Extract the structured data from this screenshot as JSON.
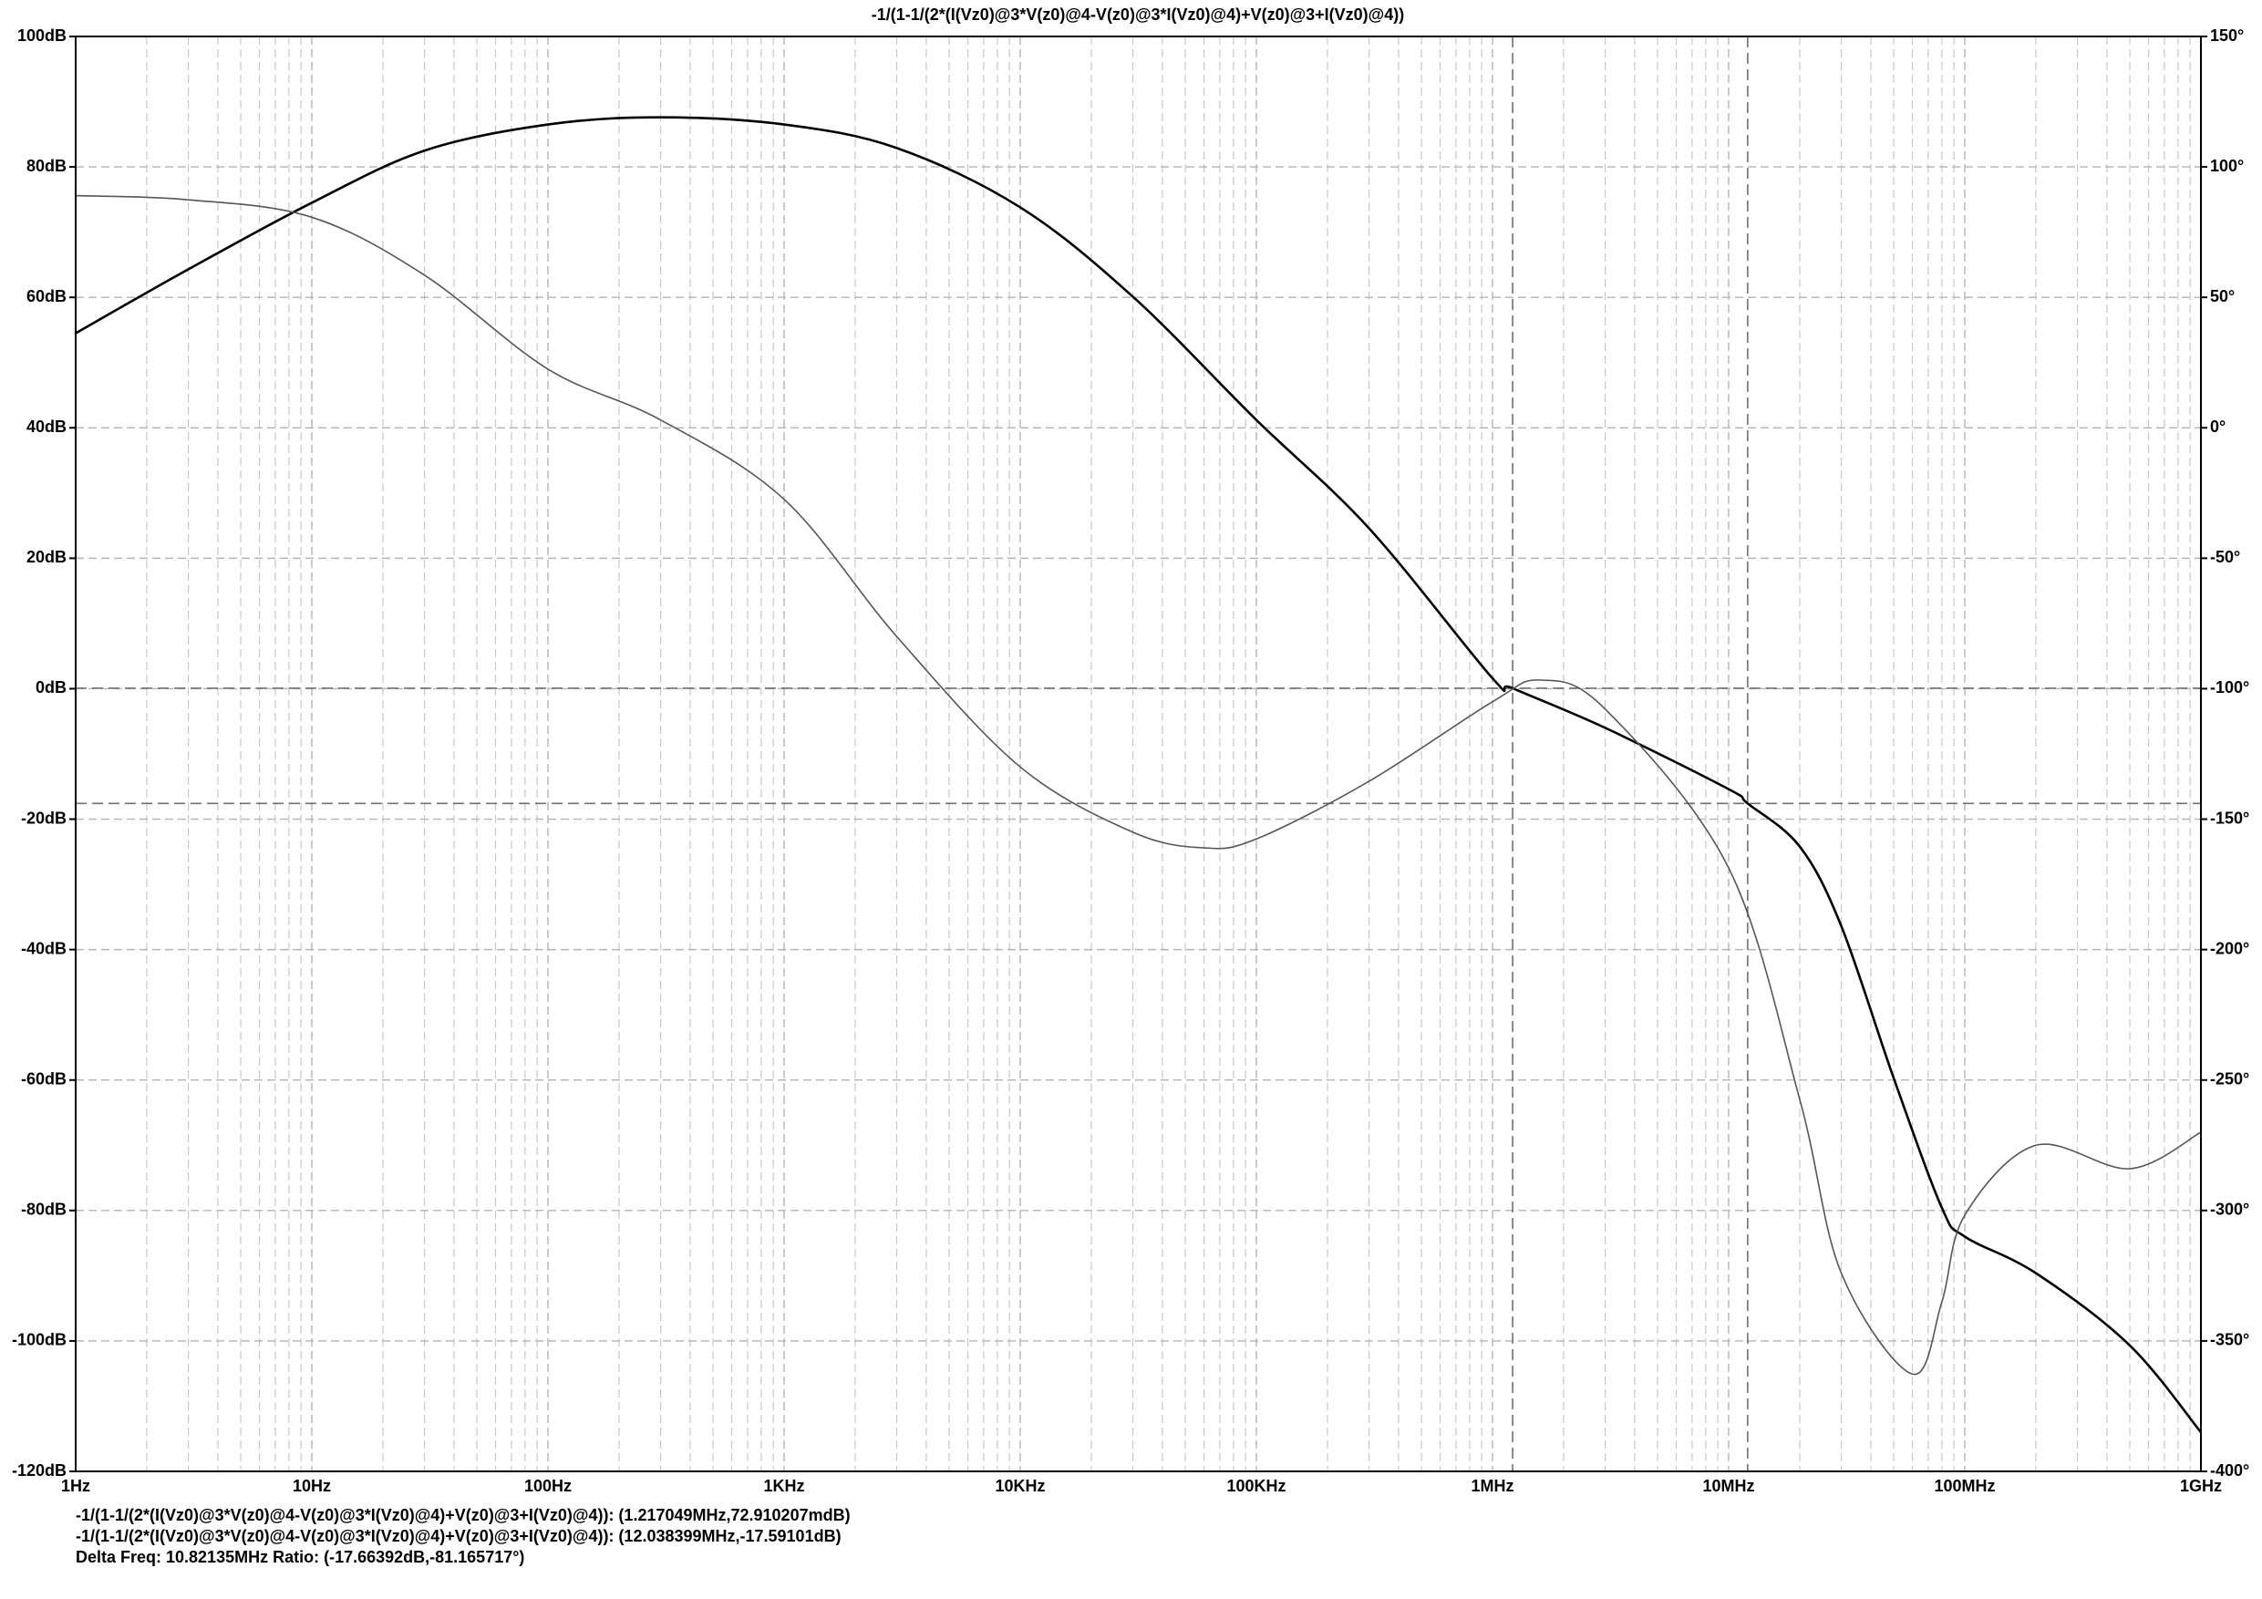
{
  "chart_data": {
    "type": "line",
    "title": "-1/(1-1/(2*(I(Vz0)@3*V(z0)@4-V(z0)@3*I(Vz0)@4)+V(z0)@3+I(Vz0)@4))",
    "xscale": "log",
    "xlim": [
      1,
      1000000000
    ],
    "xticks": [
      {
        "value": 1,
        "label": "1Hz"
      },
      {
        "value": 10,
        "label": "10Hz"
      },
      {
        "value": 100,
        "label": "100Hz"
      },
      {
        "value": 1000,
        "label": "1KHz"
      },
      {
        "value": 10000,
        "label": "10KHz"
      },
      {
        "value": 100000,
        "label": "100KHz"
      },
      {
        "value": 1000000,
        "label": "1MHz"
      },
      {
        "value": 10000000,
        "label": "10MHz"
      },
      {
        "value": 100000000,
        "label": "100MHz"
      },
      {
        "value": 1000000000,
        "label": "1GHz"
      }
    ],
    "ylim": [
      -120,
      100
    ],
    "yticks": [
      {
        "value": -120,
        "label": "-120dB"
      },
      {
        "value": -100,
        "label": "-100dB"
      },
      {
        "value": -80,
        "label": "-80dB"
      },
      {
        "value": -60,
        "label": "-60dB"
      },
      {
        "value": -40,
        "label": "-40dB"
      },
      {
        "value": -20,
        "label": "-20dB"
      },
      {
        "value": 0,
        "label": "0dB"
      },
      {
        "value": 20,
        "label": "20dB"
      },
      {
        "value": 40,
        "label": "40dB"
      },
      {
        "value": 60,
        "label": "60dB"
      },
      {
        "value": 80,
        "label": "80dB"
      },
      {
        "value": 100,
        "label": "100dB"
      }
    ],
    "y2lim": [
      -400,
      150
    ],
    "y2ticks": [
      {
        "value": -400,
        "label": "-400°"
      },
      {
        "value": -350,
        "label": "-350°"
      },
      {
        "value": -300,
        "label": "-300°"
      },
      {
        "value": -250,
        "label": "-250°"
      },
      {
        "value": -200,
        "label": "-200°"
      },
      {
        "value": -150,
        "label": "-150°"
      },
      {
        "value": -100,
        "label": "-100°"
      },
      {
        "value": -50,
        "label": "-50°"
      },
      {
        "value": 0,
        "label": "0°"
      },
      {
        "value": 50,
        "label": "50°"
      },
      {
        "value": 100,
        "label": "100°"
      },
      {
        "value": 150,
        "label": "150°"
      }
    ],
    "grid": true,
    "series": [
      {
        "color": "#000000",
        "width": 2.6,
        "x": [
          1,
          3,
          10,
          30,
          100,
          300,
          1000,
          3000,
          10000,
          30000,
          100000,
          300000,
          1000000,
          1217049,
          3000000,
          10000000,
          12038399,
          20000000,
          30000000,
          50000000,
          80000000,
          100000000,
          200000000,
          500000000,
          1000000000
        ],
        "values": [
          54.5,
          64.3,
          74.5,
          82.5,
          86.5,
          87.6,
          86.5,
          82.9,
          73.8,
          60.1,
          41.2,
          24.6,
          1.6,
          0.07,
          -6,
          -15.4,
          -17.6,
          -24.2,
          -36.4,
          -59.7,
          -79.6,
          -84,
          -89.6,
          -100.7,
          -114
        ]
      },
      {
        "color": "#555555",
        "width": 1.6,
        "axis": "y2",
        "x": [
          1,
          3,
          10,
          30,
          100,
          300,
          1000,
          3000,
          10000,
          30000,
          60000,
          100000,
          300000,
          1000000,
          1600000,
          3000000,
          10000000,
          20000000,
          30000000,
          60000000,
          80000000,
          100000000,
          200000000,
          500000000,
          1000000000
        ],
        "values": [
          89,
          87.4,
          80.7,
          58.5,
          22.5,
          3,
          -27.4,
          -80,
          -130,
          -155,
          -161,
          -157.6,
          -135.5,
          -105,
          -96.7,
          -107.8,
          -168.7,
          -257.4,
          -324,
          -362.7,
          -335,
          -301.8,
          -275,
          -284,
          -270
        ]
      }
    ],
    "cursors": [
      {
        "x": 1217049,
        "y": 0.072910207
      },
      {
        "x": 12038399,
        "y": -17.59101
      }
    ],
    "annotations": [
      "-1/(1-1/(2*(I(Vz0)@3*V(z0)@4-V(z0)@3*I(Vz0)@4)+V(z0)@3+I(Vz0)@4)): (1.217049MHz,72.910207mdB)",
      "-1/(1-1/(2*(I(Vz0)@3*V(z0)@4-V(z0)@3*I(Vz0)@4)+V(z0)@3+I(Vz0)@4)): (12.038399MHz,-17.59101dB)",
      "Delta Freq: 10.82135MHz Ratio: (-17.66392dB,-81.165717°)"
    ]
  }
}
